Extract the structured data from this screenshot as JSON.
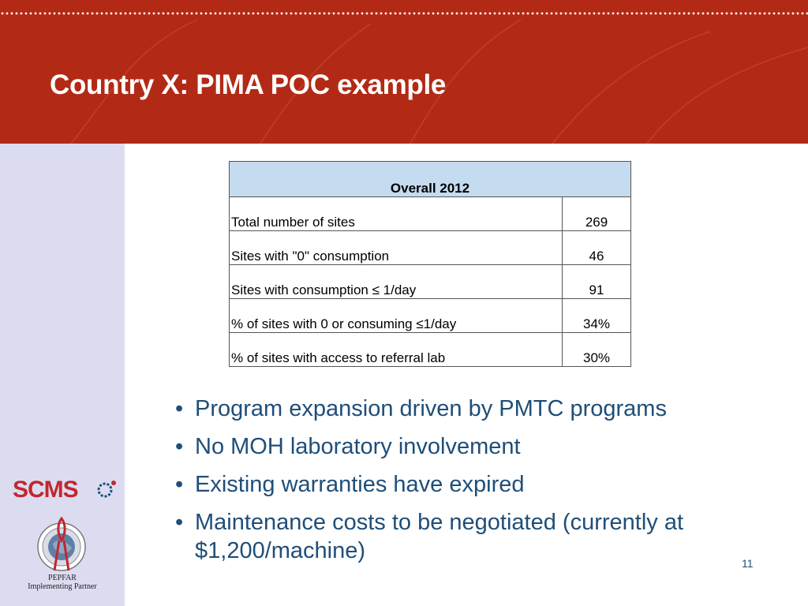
{
  "slide": {
    "title": "Country X: PIMA POC example",
    "page_number": "11"
  },
  "table": {
    "header": "Overall 2012",
    "rows": [
      {
        "label": "Total number of sites",
        "value": "269"
      },
      {
        "label": "Sites with \"0\" consumption",
        "value": "46"
      },
      {
        "label": "Sites with consumption ≤ 1/day",
        "value": "91"
      },
      {
        "label": "% of sites with 0 or consuming ≤1/day",
        "value": "34%"
      },
      {
        "label": "% of sites with access to referral lab",
        "value": "30%"
      }
    ]
  },
  "bullets": [
    "Program expansion driven by PMTC programs",
    "No MOH laboratory involvement",
    "Existing warranties have expired",
    "Maintenance costs to be negotiated (currently at $1,200/machine)"
  ],
  "sidebar": {
    "logo_text": "SCMS",
    "pepfar_name": "PEPFAR",
    "pepfar_subtitle": "Implementing Partner"
  },
  "colors": {
    "header_band": "#b22a15",
    "sidebar": "#dcdcf1",
    "table_header": "#c5dbef",
    "bullet_text": "#1f4e79",
    "logo_red": "#c1272d"
  }
}
